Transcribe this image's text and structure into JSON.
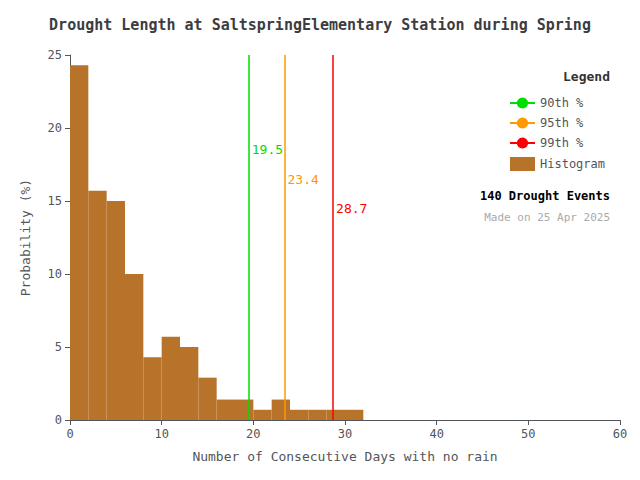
{
  "chart_data": {
    "type": "histogram",
    "title": "Drought Length at SaltspringElementary Station during Spring",
    "xlabel": "Number of Consecutive Days with no rain",
    "ylabel": "Probability (%)",
    "xlim": [
      0,
      60
    ],
    "ylim": [
      0,
      25
    ],
    "xticks": [
      0,
      10,
      20,
      30,
      40,
      50,
      60
    ],
    "yticks": [
      0,
      5,
      10,
      15,
      20,
      25
    ],
    "grid": false,
    "legend": "upper right",
    "legend_title": "Legend",
    "name": "Histogram",
    "color": "#b8732a",
    "bins": [
      0,
      2,
      4,
      6,
      8,
      10,
      12,
      14,
      16,
      18,
      20,
      22,
      24,
      26,
      28,
      30,
      32
    ],
    "values": [
      24.3,
      15.7,
      15.0,
      10.0,
      4.3,
      5.7,
      5.0,
      2.9,
      1.4,
      1.4,
      0.7,
      1.4,
      0.7,
      0.7,
      0.7,
      0.7
    ],
    "lines": [
      {
        "name": "90th %",
        "value": 19.5,
        "color": "#00dd00",
        "label": "19.5",
        "label_y": 18.5
      },
      {
        "name": "95th %",
        "value": 23.4,
        "color": "#ff9900",
        "label": "23.4",
        "label_y": 16.5
      },
      {
        "name": "99th %",
        "value": 28.7,
        "color": "#ff0000",
        "label": "28.7",
        "label_y": 14.5
      }
    ],
    "annotations": [
      "140 Drought Events",
      "Made on 25 Apr 2025"
    ]
  }
}
